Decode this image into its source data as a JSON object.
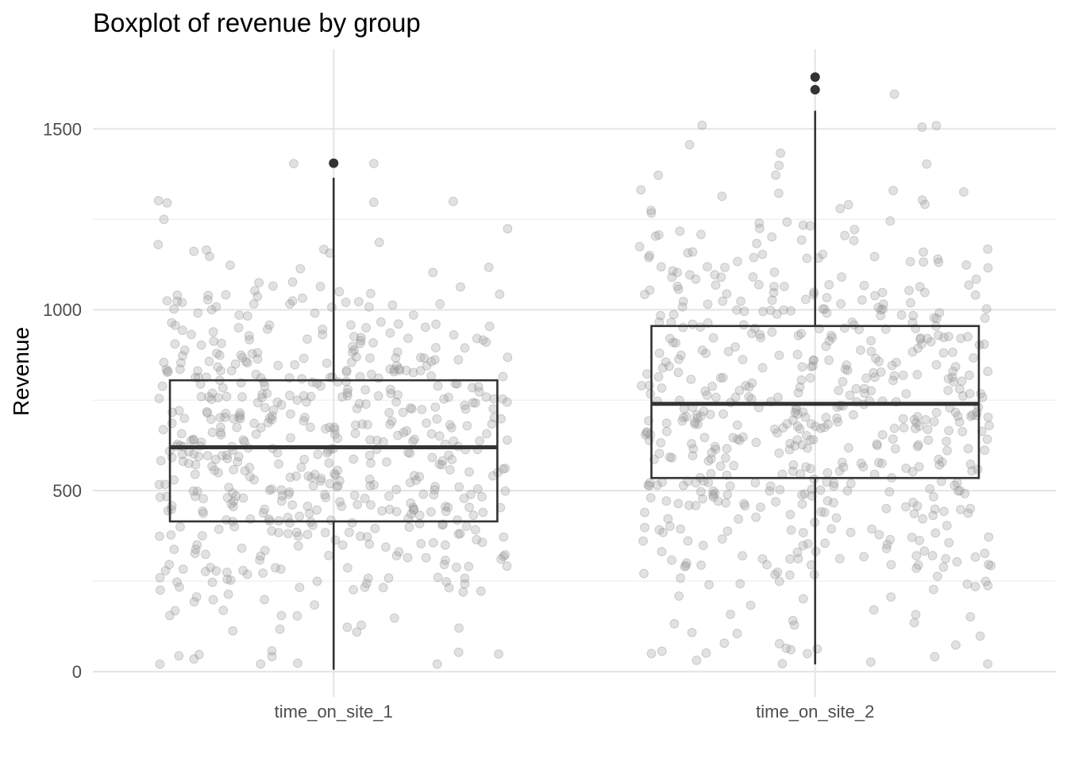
{
  "chart_data": {
    "type": "boxplot",
    "title": "Boxplot of revenue by group",
    "xlabel": "",
    "ylabel": "Revenue",
    "ylim": [
      -70,
      1720
    ],
    "y_ticks": [
      0,
      500,
      1000,
      1500
    ],
    "grid": true,
    "legend": "none",
    "categories": [
      "time_on_site_1",
      "time_on_site_2"
    ],
    "boxes": [
      {
        "category": "time_on_site_1",
        "q1": 415,
        "median": 620,
        "q3": 805,
        "whisker_low": 5,
        "whisker_high": 1365,
        "outliers": [
          1405
        ]
      },
      {
        "category": "time_on_site_2",
        "q1": 535,
        "median": 740,
        "q3": 955,
        "whisker_low": 20,
        "whisker_high": 1550,
        "outliers": [
          1608,
          1643
        ]
      }
    ],
    "jitter": {
      "points_per_group": 600,
      "alpha": 0.3,
      "color": "#9a9a9a"
    }
  }
}
